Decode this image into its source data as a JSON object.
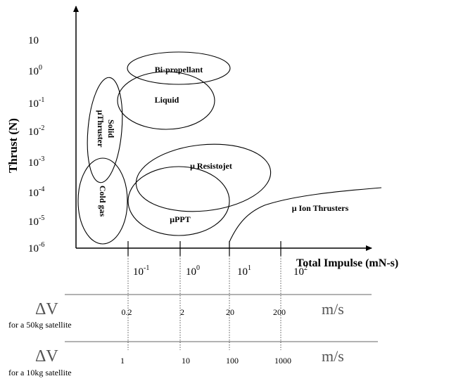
{
  "chart_data": {
    "type": "diagram",
    "y_axis": {
      "label": "Thrust (N)",
      "ticks": [
        {
          "base": "10",
          "exp": ""
        },
        {
          "base": "10",
          "exp": "0"
        },
        {
          "base": "10",
          "exp": "-1"
        },
        {
          "base": "10",
          "exp": "-2"
        },
        {
          "base": "10",
          "exp": "-3"
        },
        {
          "base": "10",
          "exp": "-4"
        },
        {
          "base": "10",
          "exp": "-5"
        },
        {
          "base": "10",
          "exp": "-6"
        }
      ]
    },
    "x_axis": {
      "label": "Total Impulse (mN-s)",
      "ticks": [
        {
          "base": "10",
          "exp": "-1"
        },
        {
          "base": "10",
          "exp": "0"
        },
        {
          "base": "10",
          "exp": "1"
        },
        {
          "base": "10",
          "exp": "2"
        }
      ]
    },
    "regions": [
      {
        "label": "Bi-propellant"
      },
      {
        "label": "Liquid"
      },
      {
        "label_lines": [
          "Solid",
          "μThruster"
        ]
      },
      {
        "label": "Cold gas"
      },
      {
        "label": "μ Resistojet"
      },
      {
        "label": "μPPT"
      },
      {
        "label": "μ Ion Thrusters"
      }
    ],
    "delta_v_rows": [
      {
        "symbol": "ΔV",
        "caption": "for a 50kg satellite",
        "values": [
          "0.2",
          "2",
          "20",
          "200"
        ],
        "unit": "m/s"
      },
      {
        "symbol": "ΔV",
        "caption": "for a 10kg satellite",
        "values": [
          "1",
          "10",
          "100",
          "1000"
        ],
        "unit": "m/s"
      }
    ]
  }
}
